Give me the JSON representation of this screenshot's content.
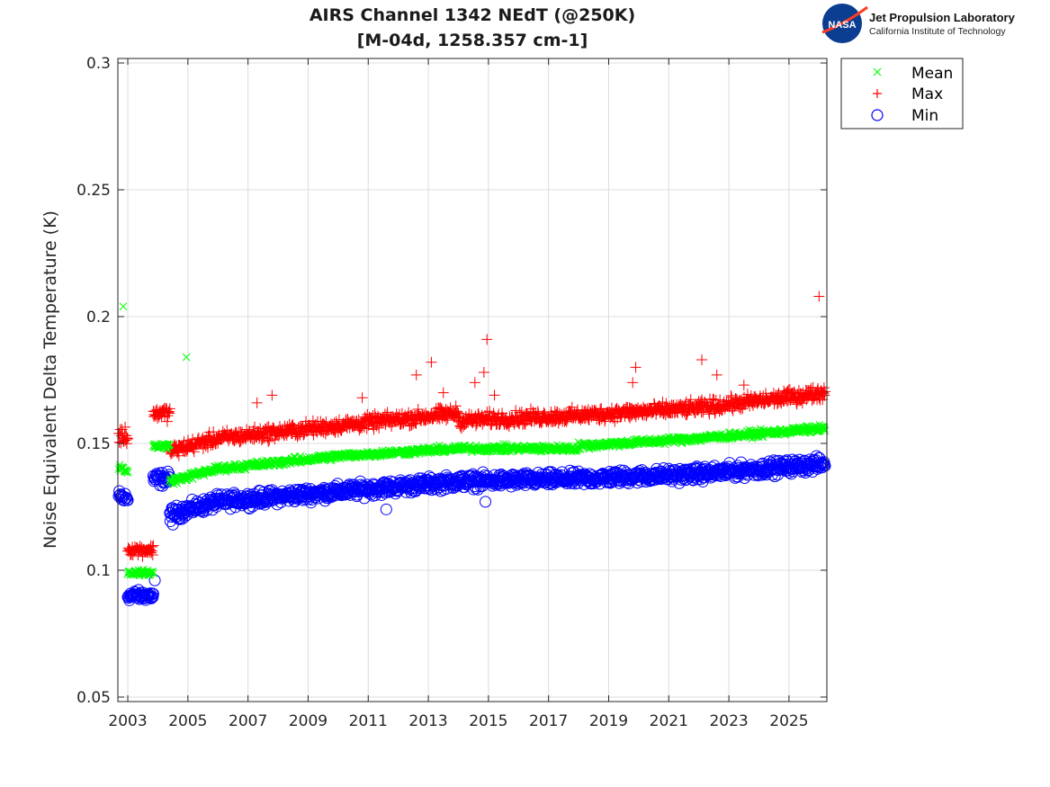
{
  "logo": {
    "org_badge": "NASA",
    "title": "Jet Propulsion Laboratory",
    "subtitle": "California Institute of Technology"
  },
  "chart_data": {
    "type": "scatter",
    "title": [
      "AIRS Channel 1342 NEdT (@250K)",
      "[M-04d, 1258.357 cm-1]"
    ],
    "xlabel": "",
    "ylabel": "Noise Equivalent Delta Temperature (K)",
    "xlim": [
      2002.67,
      2026.26
    ],
    "ylim": [
      0.05,
      0.3
    ],
    "xticks": [
      2003,
      2005,
      2007,
      2009,
      2011,
      2013,
      2015,
      2017,
      2019,
      2021,
      2023,
      2025
    ],
    "xtick_labels": [
      "2003",
      "2005",
      "2007",
      "2009",
      "2011",
      "2013",
      "2015",
      "2017",
      "2019",
      "2021",
      "2023",
      "2025"
    ],
    "yticks": [
      0.05,
      0.1,
      0.15,
      0.2,
      0.25,
      0.3
    ],
    "ytick_labels": [
      "0.05",
      "0.1",
      "0.15",
      "0.2",
      "0.25",
      "0.3"
    ],
    "grid": true,
    "legend": {
      "position": "outside-top-right",
      "entries": [
        {
          "label": "Mean",
          "marker": "x",
          "color": "#00ff00"
        },
        {
          "label": "Max",
          "marker": "+",
          "color": "#ff0000"
        },
        {
          "label": "Min",
          "marker": "o",
          "color": "#0000ff"
        }
      ]
    },
    "series": [
      {
        "name": "Mean",
        "marker": "x",
        "color": "#00ff00",
        "segments": [
          {
            "x": [
              2002.7,
              2003.0
            ],
            "y": [
              0.141,
              0.139
            ],
            "spread": 0.002
          },
          {
            "x": [
              2003.0,
              2003.85
            ],
            "y": [
              0.099,
              0.099
            ],
            "spread": 0.0015
          },
          {
            "x": [
              2003.85,
              2004.4
            ],
            "y": [
              0.149,
              0.149
            ],
            "spread": 0.002
          },
          {
            "x": [
              2004.4,
              2006.0
            ],
            "y": [
              0.135,
              0.14
            ],
            "spread": 0.002
          },
          {
            "x": [
              2006.0,
              2010.0
            ],
            "y": [
              0.14,
              0.145
            ],
            "spread": 0.002
          },
          {
            "x": [
              2010.0,
              2014.0
            ],
            "y": [
              0.145,
              0.148
            ],
            "spread": 0.002
          },
          {
            "x": [
              2014.0,
              2018.0
            ],
            "y": [
              0.148,
              0.148
            ],
            "spread": 0.002
          },
          {
            "x": [
              2018.0,
              2022.0
            ],
            "y": [
              0.149,
              0.152
            ],
            "spread": 0.002
          },
          {
            "x": [
              2022.0,
              2026.2
            ],
            "y": [
              0.152,
              0.156
            ],
            "spread": 0.002
          }
        ],
        "outliers": [
          {
            "x": 2002.85,
            "y": 0.204
          },
          {
            "x": 2004.95,
            "y": 0.184
          }
        ]
      },
      {
        "name": "Max",
        "marker": "+",
        "color": "#ff0000",
        "segments": [
          {
            "x": [
              2002.7,
              2003.0
            ],
            "y": [
              0.153,
              0.153
            ],
            "spread": 0.005
          },
          {
            "x": [
              2003.0,
              2003.85
            ],
            "y": [
              0.108,
              0.108
            ],
            "spread": 0.003
          },
          {
            "x": [
              2003.85,
              2004.4
            ],
            "y": [
              0.162,
              0.162
            ],
            "spread": 0.004
          },
          {
            "x": [
              2004.4,
              2006.0
            ],
            "y": [
              0.147,
              0.152
            ],
            "spread": 0.004
          },
          {
            "x": [
              2006.0,
              2010.0
            ],
            "y": [
              0.152,
              0.157
            ],
            "spread": 0.004
          },
          {
            "x": [
              2010.0,
              2014.0
            ],
            "y": [
              0.157,
              0.162
            ],
            "spread": 0.004
          },
          {
            "x": [
              2014.0,
              2018.0
            ],
            "y": [
              0.159,
              0.161
            ],
            "spread": 0.004
          },
          {
            "x": [
              2018.0,
              2022.0
            ],
            "y": [
              0.161,
              0.164
            ],
            "spread": 0.004
          },
          {
            "x": [
              2022.0,
              2026.2
            ],
            "y": [
              0.164,
              0.17
            ],
            "spread": 0.004
          }
        ],
        "outliers": [
          {
            "x": 2007.3,
            "y": 0.166
          },
          {
            "x": 2007.8,
            "y": 0.169
          },
          {
            "x": 2010.8,
            "y": 0.168
          },
          {
            "x": 2012.6,
            "y": 0.177
          },
          {
            "x": 2013.1,
            "y": 0.182
          },
          {
            "x": 2013.5,
            "y": 0.17
          },
          {
            "x": 2014.55,
            "y": 0.174
          },
          {
            "x": 2014.85,
            "y": 0.178
          },
          {
            "x": 2014.95,
            "y": 0.191
          },
          {
            "x": 2015.2,
            "y": 0.169
          },
          {
            "x": 2019.9,
            "y": 0.18
          },
          {
            "x": 2019.8,
            "y": 0.174
          },
          {
            "x": 2022.1,
            "y": 0.183
          },
          {
            "x": 2022.6,
            "y": 0.177
          },
          {
            "x": 2023.5,
            "y": 0.173
          },
          {
            "x": 2026.0,
            "y": 0.208
          }
        ]
      },
      {
        "name": "Min",
        "marker": "o",
        "color": "#0000ff",
        "segments": [
          {
            "x": [
              2002.7,
              2003.0
            ],
            "y": [
              0.129,
              0.128
            ],
            "spread": 0.004
          },
          {
            "x": [
              2003.0,
              2003.85
            ],
            "y": [
              0.09,
              0.09
            ],
            "spread": 0.003
          },
          {
            "x": [
              2003.85,
              2004.4
            ],
            "y": [
              0.136,
              0.136
            ],
            "spread": 0.004
          },
          {
            "x": [
              2004.4,
              2006.0
            ],
            "y": [
              0.122,
              0.127
            ],
            "spread": 0.004
          },
          {
            "x": [
              2006.0,
              2010.0
            ],
            "y": [
              0.127,
              0.131
            ],
            "spread": 0.004
          },
          {
            "x": [
              2010.0,
              2014.0
            ],
            "y": [
              0.131,
              0.135
            ],
            "spread": 0.004
          },
          {
            "x": [
              2014.0,
              2018.0
            ],
            "y": [
              0.135,
              0.136
            ],
            "spread": 0.004
          },
          {
            "x": [
              2018.0,
              2022.0
            ],
            "y": [
              0.136,
              0.138
            ],
            "spread": 0.004
          },
          {
            "x": [
              2022.0,
              2026.2
            ],
            "y": [
              0.138,
              0.142
            ],
            "spread": 0.004
          }
        ],
        "outliers": [
          {
            "x": 2011.6,
            "y": 0.124
          },
          {
            "x": 2014.9,
            "y": 0.127
          },
          {
            "x": 2004.5,
            "y": 0.118
          },
          {
            "x": 2003.9,
            "y": 0.096
          }
        ]
      }
    ]
  }
}
